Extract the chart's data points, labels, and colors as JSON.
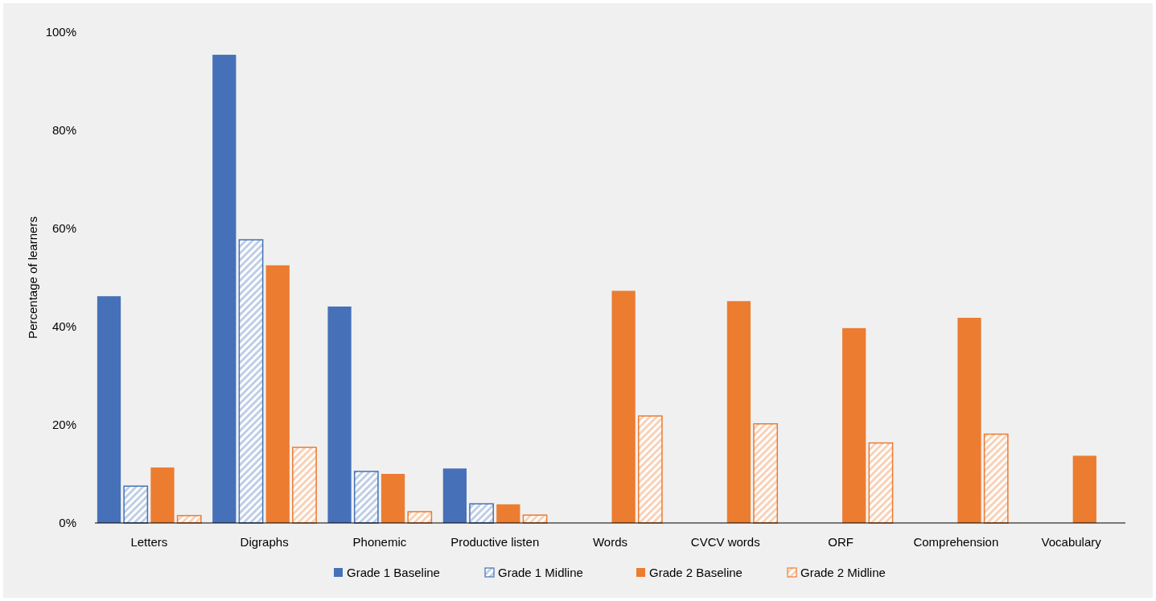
{
  "chart_data": {
    "type": "bar",
    "ylabel": "Percentage of learners",
    "categories": [
      "Letters",
      "Digraphs",
      "Phonemic",
      "Productive listen",
      "Words",
      "CVCV words",
      "ORF",
      "Comprehension",
      "Vocabulary"
    ],
    "series": [
      {
        "name": "Grade 1 Baseline",
        "color": "#4671b8",
        "values": [
          46.2,
          95.4,
          44.1,
          11.1,
          null,
          null,
          null,
          null,
          null
        ]
      },
      {
        "name": "Grade 1 Midline",
        "color": "#4671b8",
        "values": [
          7.5,
          57.7,
          10.5,
          3.9,
          null,
          null,
          null,
          null,
          null
        ]
      },
      {
        "name": "Grade 2 Baseline",
        "color": "#ec7c30",
        "values": [
          11.3,
          52.5,
          10.0,
          3.8,
          47.3,
          45.2,
          39.7,
          41.8,
          13.7
        ]
      },
      {
        "name": "Grade 2 Midline",
        "color": "#ec7c30",
        "values": [
          1.5,
          15.4,
          2.3,
          1.6,
          21.8,
          20.2,
          16.3,
          18.1,
          null
        ]
      }
    ],
    "ylim": [
      0,
      100
    ],
    "yticks": [
      {
        "value": 0,
        "label": "0%"
      },
      {
        "value": 20,
        "label": "20%"
      },
      {
        "value": 40,
        "label": "40%"
      },
      {
        "value": 60,
        "label": "60%"
      },
      {
        "value": 80,
        "label": "80%"
      },
      {
        "value": 100,
        "label": "100%"
      }
    ],
    "grid": false,
    "legend": "bottom"
  }
}
